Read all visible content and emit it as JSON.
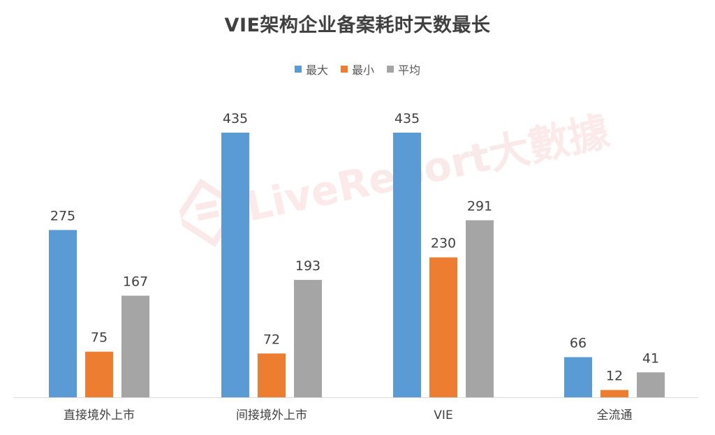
{
  "chart_data": {
    "type": "bar",
    "title": "VIE架构企业备案耗时天数最长",
    "categories": [
      "直接境外上市",
      "间接境外上市",
      "VIE",
      "全流通"
    ],
    "series": [
      {
        "name": "最大",
        "color": "#5B9BD5",
        "values": [
          275,
          435,
          435,
          66
        ]
      },
      {
        "name": "最小",
        "color": "#ED7D31",
        "values": [
          75,
          72,
          230,
          12
        ]
      },
      {
        "name": "平均",
        "color": "#A5A5A5",
        "values": [
          167,
          193,
          291,
          41
        ]
      }
    ],
    "xlabel": "",
    "ylabel": "",
    "ylim": [
      0,
      435
    ],
    "grid": false,
    "legend_position": "top"
  },
  "watermark": {
    "text": "LiveReport大數據",
    "icon": "livereport-logo-icon"
  }
}
